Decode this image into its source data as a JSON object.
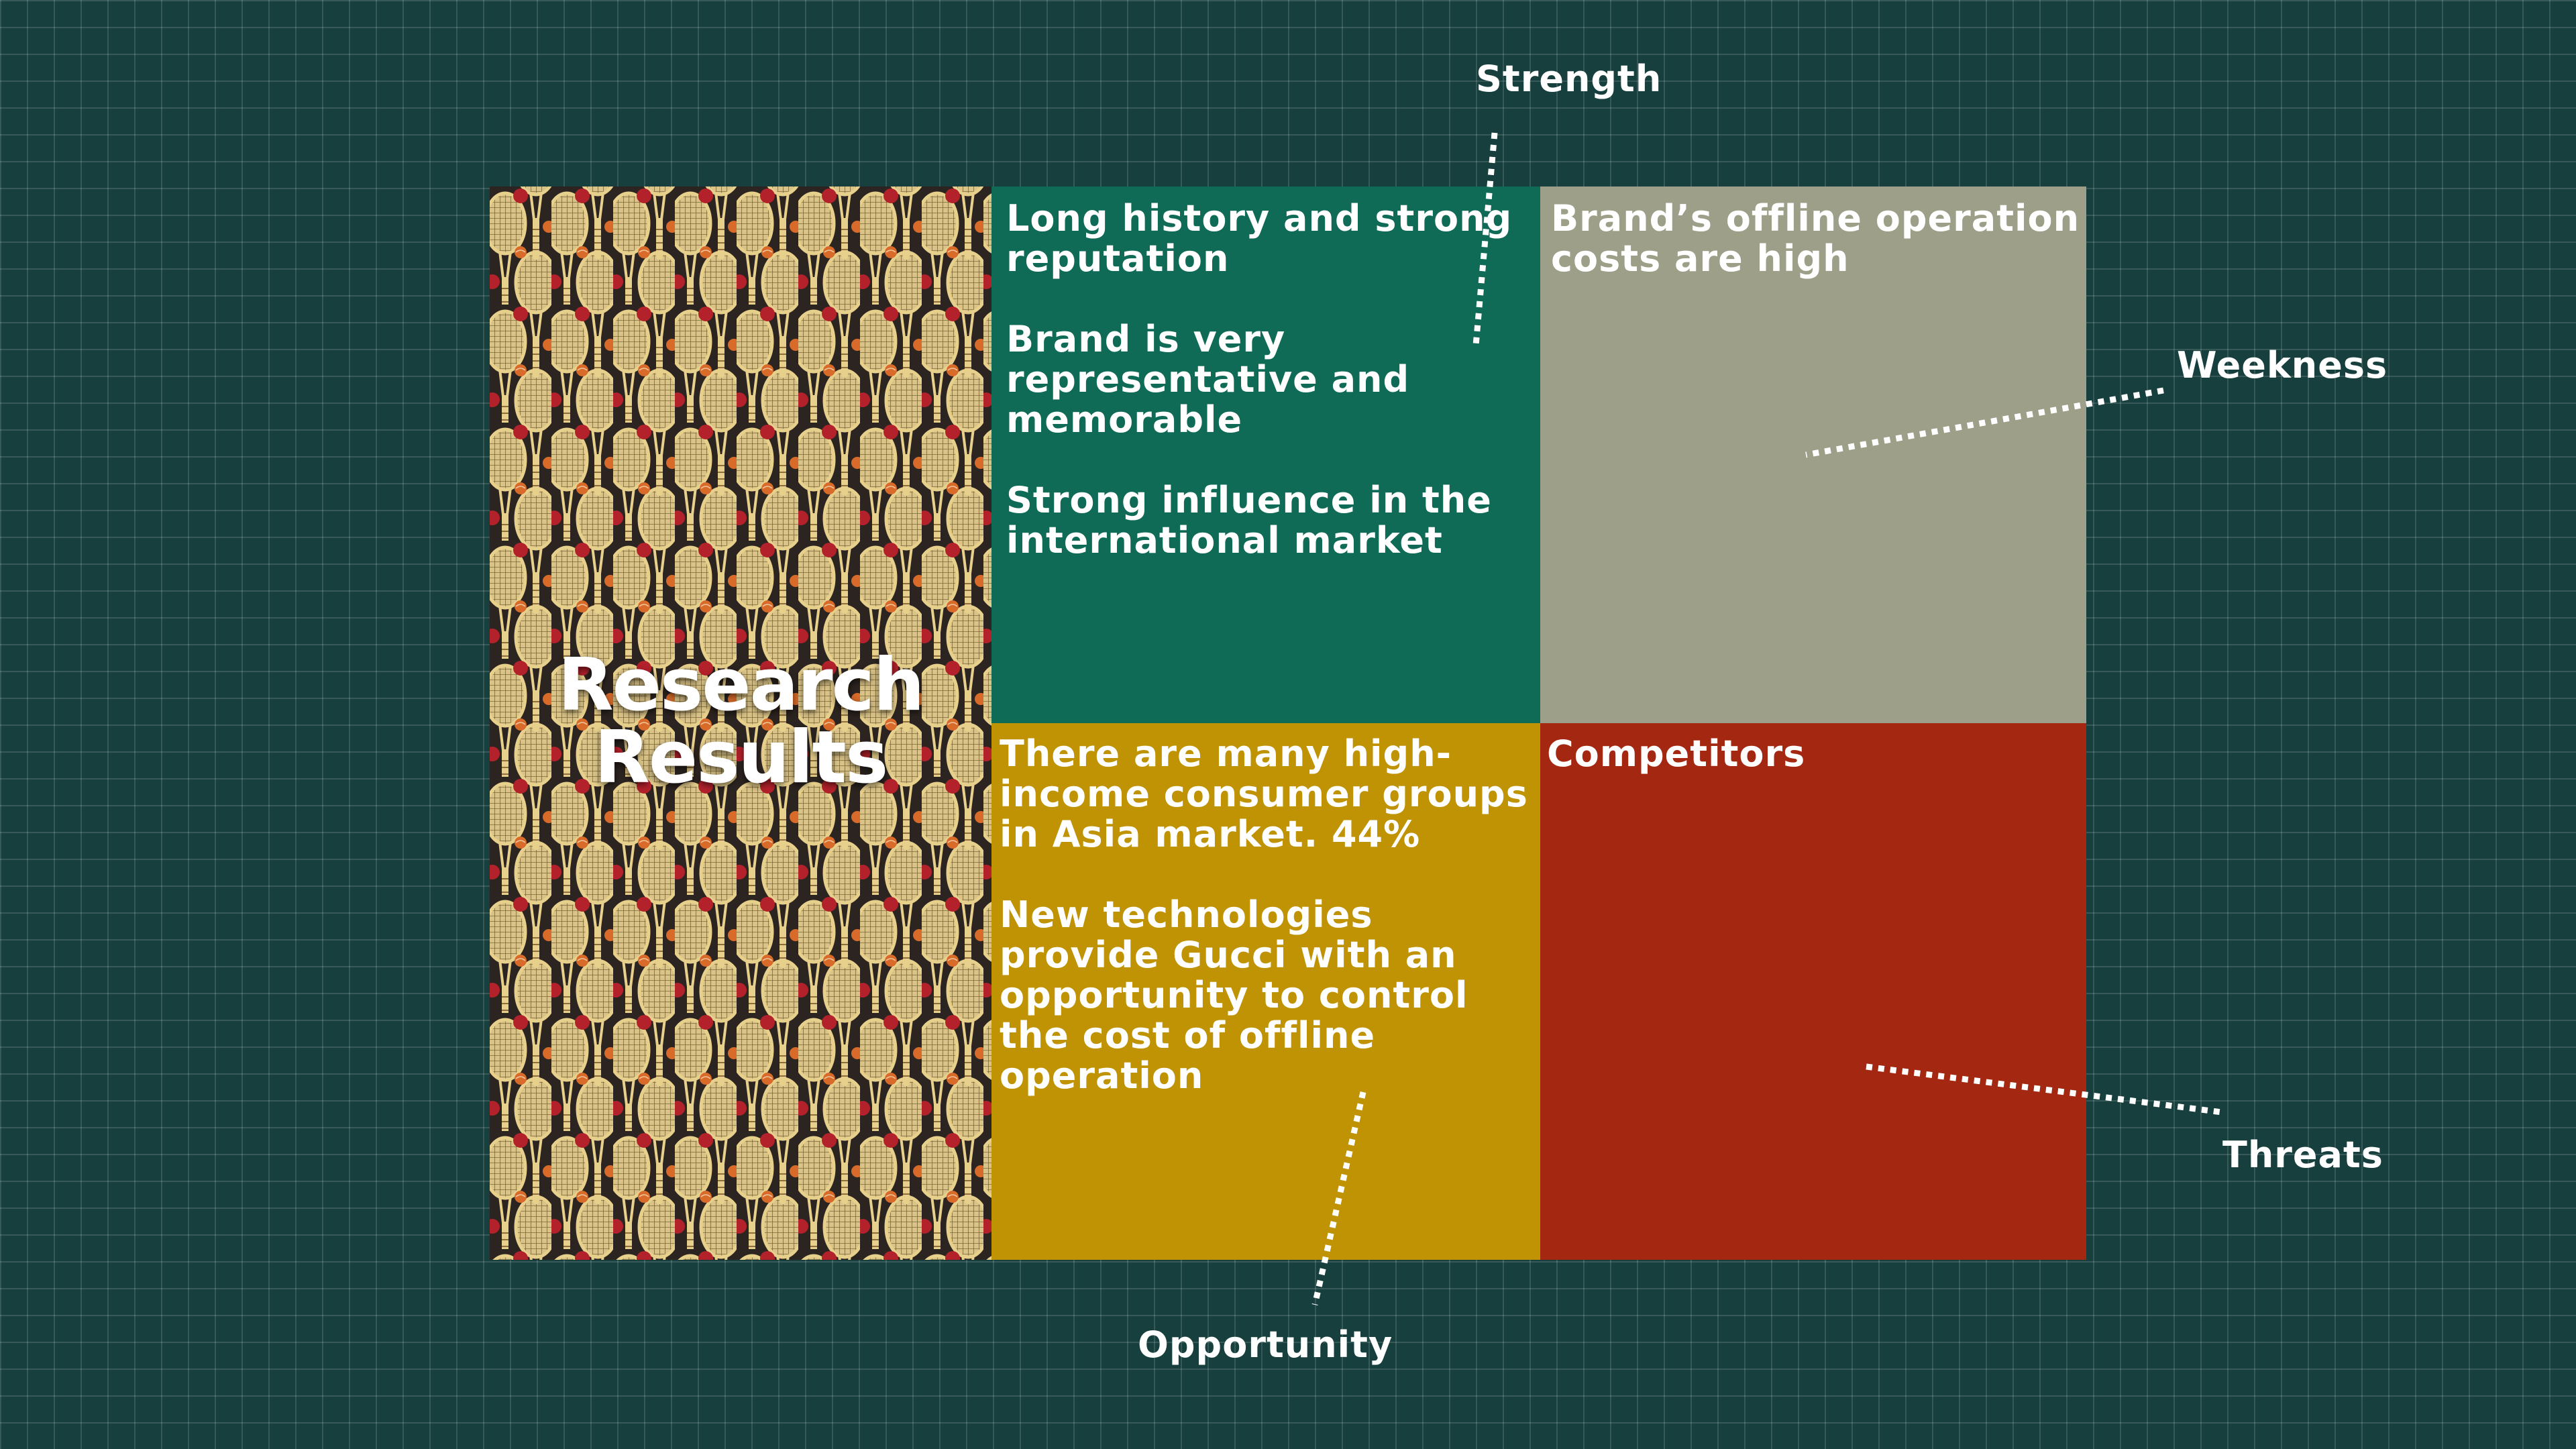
{
  "title": "Research Results",
  "labels": {
    "strength": "Strength",
    "weakness": "Weekness",
    "opportunity": "Opportunity",
    "threats": "Threats"
  },
  "quadrants": {
    "strength": [
      "Long history and strong reputation",
      "Brand is very representative and memorable",
      "Strong influence in the international market"
    ],
    "weakness": [
      "Brand’s offline operation costs are high"
    ],
    "opportunity": [
      "There are many high-income consumer groups in Asia market. 44%",
      "New technologies provide Gucci with an opportunity to control the cost of offline operation"
    ],
    "threats": [
      "Competitors"
    ]
  },
  "colors": {
    "background": "#163f3d",
    "strength": "#0f6a56",
    "weakness": "#9d9f89",
    "opportunity": "#bf9304",
    "threats": "#a42711",
    "text": "#ffffff"
  },
  "image": {
    "description_icon": "tennis-racket-pattern"
  }
}
